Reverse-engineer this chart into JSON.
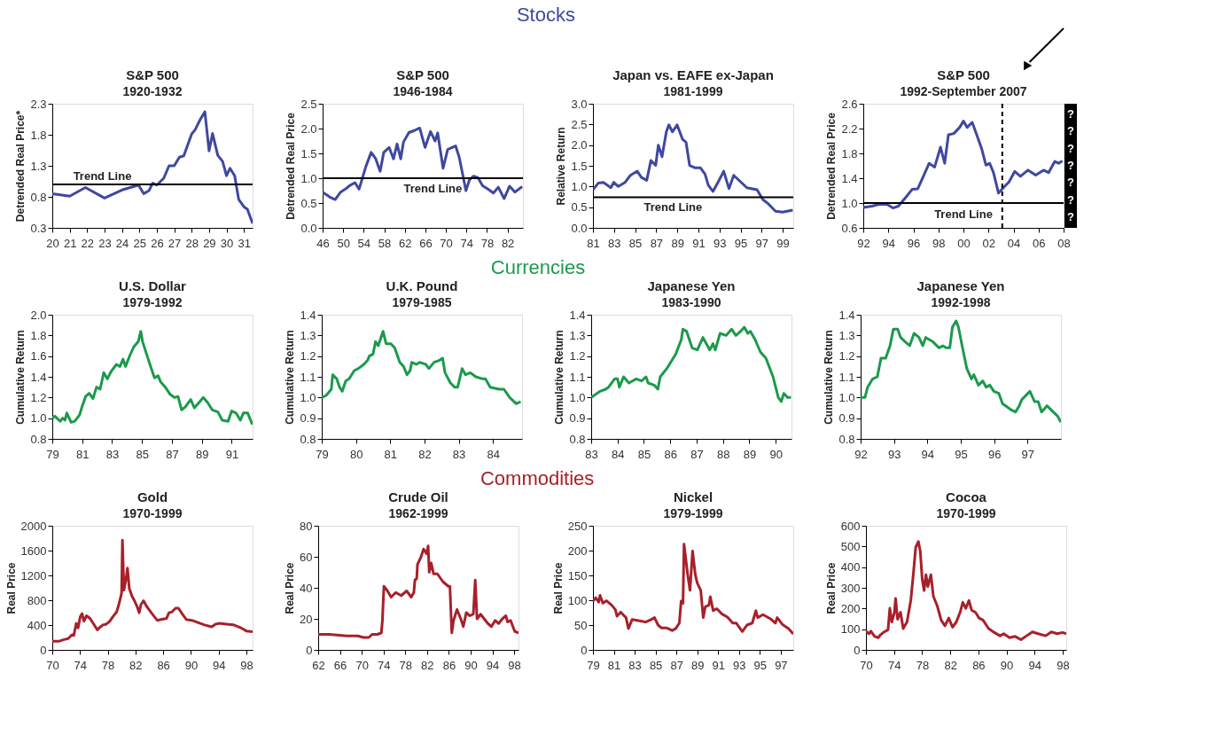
{
  "chart_data": [
    {
      "type": "line",
      "title": "S&P 500",
      "subtitle": "1920-1932",
      "ylabel": "Detrended Real Price*",
      "annotations": [
        "Stocks"
      ],
      "grid": false,
      "x": [
        1920,
        1921,
        1921.9,
        1923.0,
        1924.0,
        1924.95,
        1925.25,
        1925.55,
        1925.76,
        1926.0,
        1926.4,
        1926.7,
        1927.0,
        1927.3,
        1927.55,
        1927.7,
        1928.0,
        1928.2,
        1928.5,
        1928.76,
        1929.0,
        1929.2,
        1929.5,
        1929.78,
        1930.0,
        1930.2,
        1930.47,
        1930.7,
        1931.0,
        1931.2,
        1931.5
      ],
      "series": [
        {
          "color": "#3f48a0",
          "values": [
            0.85,
            0.81,
            0.95,
            0.78,
            0.91,
            0.99,
            0.85,
            0.9,
            1.02,
            0.99,
            1.1,
            1.3,
            1.3,
            1.44,
            1.46,
            1.58,
            1.81,
            1.88,
            2.05,
            2.17,
            1.54,
            1.82,
            1.47,
            1.37,
            1.14,
            1.26,
            1.14,
            0.76,
            0.64,
            0.6,
            0.37
          ]
        }
      ],
      "xlim": [
        1920,
        1931.5
      ],
      "ylim": [
        0.3,
        2.3
      ],
      "yticks": [
        0.3,
        0.8,
        1.3,
        1.8,
        2.3
      ],
      "xticks": [
        {
          "value": 1920,
          "label": "20"
        },
        {
          "value": 1921,
          "label": "21"
        },
        {
          "value": 1922,
          "label": "22"
        },
        {
          "value": 1923,
          "label": "23"
        },
        {
          "value": 1924,
          "label": "24"
        },
        {
          "value": 1925,
          "label": "25"
        },
        {
          "value": 1926,
          "label": "26"
        },
        {
          "value": 1927,
          "label": "27"
        },
        {
          "value": 1928,
          "label": "28"
        },
        {
          "value": 1929,
          "label": "29"
        },
        {
          "value": 1930,
          "label": "30"
        },
        {
          "value": 1931,
          "label": "31"
        }
      ],
      "ref_lines": [
        {
          "axis": "y",
          "value": 1.0,
          "label": "Trend Line",
          "color": "#000000"
        }
      ]
    },
    {
      "type": "line",
      "title": "S&P 500",
      "subtitle": "1946-1984",
      "ylabel": "Detrended Real Price",
      "grid": false,
      "x": [
        1946,
        1947.4,
        1948.45,
        1949.5,
        1950.55,
        1951.25,
        1952.3,
        1953.1,
        1954.4,
        1955.45,
        1956.3,
        1957.2,
        1957.9,
        1958.95,
        1959.8,
        1960.5,
        1961.2,
        1961.75,
        1962.8,
        1963.85,
        1964.9,
        1965.95,
        1967.0,
        1967.9,
        1968.4,
        1969.45,
        1970.35,
        1971.9,
        1972.6,
        1973.9,
        1974.6,
        1975.4,
        1976.25,
        1977.15,
        1978.2,
        1979.25,
        1980.2,
        1981.35,
        1982.4,
        1983.45,
        1984.85
      ],
      "series": [
        {
          "color": "#3f48a0",
          "values": [
            0.72,
            0.62,
            0.57,
            0.72,
            0.79,
            0.85,
            0.91,
            0.78,
            1.23,
            1.52,
            1.4,
            1.14,
            1.52,
            1.62,
            1.39,
            1.69,
            1.39,
            1.73,
            1.92,
            1.96,
            2.01,
            1.62,
            1.94,
            1.75,
            1.91,
            1.2,
            1.58,
            1.65,
            1.42,
            0.75,
            0.97,
            1.04,
            1.01,
            0.85,
            0.78,
            0.7,
            0.82,
            0.59,
            0.84,
            0.72,
            0.83
          ]
        }
      ],
      "xlim": [
        1946,
        1985
      ],
      "ylim": [
        0,
        2.5
      ],
      "yticks": [
        {
          "value": 0,
          "label": "0.0"
        },
        0.5,
        {
          "value": 1,
          "label": "1.0"
        },
        1.5,
        {
          "value": 2,
          "label": "2.0"
        },
        2.5
      ],
      "xticks": [
        {
          "value": 1946,
          "label": "46"
        },
        {
          "value": 1950,
          "label": "50"
        },
        {
          "value": 1954,
          "label": "54"
        },
        {
          "value": 1958,
          "label": "58"
        },
        {
          "value": 1962,
          "label": "62"
        },
        {
          "value": 1966,
          "label": "66"
        },
        {
          "value": 1970,
          "label": "70"
        },
        {
          "value": 1974,
          "label": "74"
        },
        {
          "value": 1978,
          "label": "78"
        },
        {
          "value": 1982,
          "label": "82"
        }
      ],
      "ref_lines": [
        {
          "axis": "y",
          "value": 1.0,
          "label": "Trend Line",
          "color": "#000000"
        }
      ]
    },
    {
      "type": "line",
      "title": "Japan vs. EAFE ex-Japan",
      "subtitle": "1981-1999",
      "ylabel": "Relative Return",
      "grid": false,
      "x": [
        1981,
        1981.5,
        1982,
        1982.7,
        1982.97,
        1983.4,
        1984.05,
        1984.55,
        1985.2,
        1985.6,
        1986.1,
        1986.5,
        1986.95,
        1987.2,
        1987.55,
        1987.96,
        1988.2,
        1988.54,
        1988.98,
        1989.5,
        1989.83,
        1990.17,
        1990.7,
        1991.2,
        1991.63,
        1991.94,
        1992.38,
        1992.82,
        1993.4,
        1993.9,
        1994.35,
        1994.93,
        1995.6,
        1996.56,
        1997.13,
        1997.64,
        1998.32,
        1999.0,
        1999.95
      ],
      "series": [
        {
          "color": "#3f48a0",
          "values": [
            0.92,
            1.08,
            1.1,
            0.97,
            1.1,
            1.0,
            1.1,
            1.27,
            1.37,
            1.22,
            1.15,
            1.63,
            1.51,
            2.0,
            1.72,
            2.32,
            2.49,
            2.32,
            2.49,
            2.14,
            2.07,
            1.51,
            1.45,
            1.45,
            1.3,
            1.03,
            0.88,
            1.08,
            1.37,
            0.95,
            1.27,
            1.13,
            0.97,
            0.92,
            0.68,
            0.58,
            0.4,
            0.38,
            0.43
          ]
        }
      ],
      "xlim": [
        1981,
        2000
      ],
      "ylim": [
        0,
        3.0
      ],
      "yticks": [
        {
          "value": 0,
          "label": "0.0"
        },
        0.5,
        {
          "value": 1,
          "label": "1.0"
        },
        1.5,
        {
          "value": 2,
          "label": "2.0"
        },
        2.5,
        {
          "value": 3,
          "label": "3.0"
        }
      ],
      "xticks": [
        {
          "value": 1981,
          "label": "81"
        },
        {
          "value": 1983,
          "label": "83"
        },
        {
          "value": 1985,
          "label": "85"
        },
        {
          "value": 1987,
          "label": "87"
        },
        {
          "value": 1989,
          "label": "89"
        },
        {
          "value": 1991,
          "label": "91"
        },
        {
          "value": 1993,
          "label": "93"
        },
        {
          "value": 1995,
          "label": "95"
        },
        {
          "value": 1997,
          "label": "97"
        },
        {
          "value": 1999,
          "label": "99"
        }
      ],
      "ref_lines": [
        {
          "axis": "y",
          "value": 0.74,
          "label": "Trend Line",
          "color": "#000000"
        }
      ]
    },
    {
      "type": "line",
      "title": "S&P 500",
      "subtitle": "1992-September 2007",
      "ylabel": "Detrended Real Price",
      "annotations": [
        "?",
        "?",
        "?",
        "?",
        "?",
        "?",
        "?"
      ],
      "grid": false,
      "x": [
        1992,
        1992.7,
        1993.3,
        1993.9,
        1994.37,
        1994.8,
        1995.43,
        1995.9,
        1996.35,
        1996.8,
        1997.26,
        1997.7,
        1998.17,
        1998.5,
        1998.8,
        1999.23,
        1999.7,
        2000.0,
        2000.3,
        2000.7,
        2001.06,
        2001.45,
        2001.8,
        2002.1,
        2002.4,
        2002.8,
        2003.2,
        2003.64,
        2004.1,
        2004.55,
        2005.16,
        2005.77,
        2006.4,
        2006.8,
        2007.3,
        2007.6,
        2007.9
      ],
      "series": [
        {
          "color": "#3f48a0",
          "values": [
            0.93,
            0.95,
            0.98,
            0.98,
            0.92,
            0.95,
            1.1,
            1.22,
            1.23,
            1.43,
            1.64,
            1.58,
            1.9,
            1.64,
            2.1,
            2.12,
            2.22,
            2.32,
            2.22,
            2.3,
            2.1,
            1.88,
            1.61,
            1.64,
            1.49,
            1.16,
            1.25,
            1.34,
            1.51,
            1.43,
            1.53,
            1.45,
            1.53,
            1.49,
            1.67,
            1.64,
            1.68
          ]
        }
      ],
      "xlim": [
        1992,
        2008
      ],
      "ylim": [
        0.6,
        2.6
      ],
      "yticks": [
        0.6,
        {
          "value": 1,
          "label": "1.0"
        },
        1.4,
        1.8,
        2.2,
        2.6
      ],
      "xticks": [
        {
          "value": 1992,
          "label": "92"
        },
        {
          "value": 1994,
          "label": "94"
        },
        {
          "value": 1996,
          "label": "96"
        },
        {
          "value": 1998,
          "label": "98"
        },
        {
          "value": 2000,
          "label": "00"
        },
        {
          "value": 2002,
          "label": "02"
        },
        {
          "value": 2004,
          "label": "04"
        },
        {
          "value": 2006,
          "label": "06"
        },
        {
          "value": 2008,
          "label": "08"
        }
      ],
      "ref_lines": [
        {
          "axis": "y",
          "value": 1.0,
          "label": "Trend Line",
          "color": "#000000"
        },
        {
          "axis": "x",
          "value": 2003.1,
          "color": "#000000",
          "line_style": "dashed"
        }
      ]
    },
    {
      "type": "line",
      "title": "U.S. Dollar",
      "subtitle": "1979-1992",
      "ylabel": "Cumulative Return",
      "annotations": [
        "Currencies"
      ],
      "grid": false,
      "x": [
        1979,
        1979.17,
        1979.53,
        1979.7,
        1979.85,
        1979.97,
        1980.26,
        1980.5,
        1980.82,
        1980.99,
        1981.23,
        1981.47,
        1981.72,
        1981.96,
        1982.2,
        1982.44,
        1982.68,
        1982.93,
        1983.29,
        1983.53,
        1983.73,
        1983.9,
        1984.2,
        1984.45,
        1984.75,
        1984.92,
        1985.04,
        1985.35,
        1985.6,
        1985.84,
        1986.08,
        1986.25,
        1986.56,
        1986.88,
        1987.17,
        1987.41,
        1987.65,
        1987.9,
        1988.26,
        1988.5,
        1988.87,
        1989.1,
        1989.4,
        1989.7,
        1990.08,
        1990.37,
        1990.76,
        1991.0,
        1991.29,
        1991.58,
        1991.78,
        1992.07,
        1992.38
      ],
      "series": [
        {
          "color": "#1b9a4b",
          "values": [
            1.0,
            1.02,
            0.97,
            1.0,
            0.98,
            1.05,
            0.96,
            0.97,
            1.03,
            1.11,
            1.21,
            1.24,
            1.19,
            1.3,
            1.28,
            1.44,
            1.38,
            1.45,
            1.52,
            1.5,
            1.57,
            1.5,
            1.61,
            1.69,
            1.74,
            1.84,
            1.74,
            1.6,
            1.49,
            1.39,
            1.41,
            1.35,
            1.3,
            1.23,
            1.2,
            1.21,
            1.08,
            1.11,
            1.18,
            1.1,
            1.16,
            1.2,
            1.15,
            1.08,
            1.06,
            0.98,
            0.97,
            1.07,
            1.05,
            0.98,
            1.05,
            1.05,
            0.94
          ]
        }
      ],
      "xlim": [
        1979,
        1992.4
      ],
      "ylim": [
        0.8,
        2.0
      ],
      "yticks": [
        0.8,
        {
          "value": 1,
          "label": "1.0"
        },
        1.2,
        1.4,
        1.6,
        1.8,
        {
          "value": 2,
          "label": "2.0"
        }
      ],
      "xticks": [
        {
          "value": 1979,
          "label": "79"
        },
        {
          "value": 1981,
          "label": "81"
        },
        {
          "value": 1983,
          "label": "83"
        },
        {
          "value": 1985,
          "label": "85"
        },
        {
          "value": 1987,
          "label": "87"
        },
        {
          "value": 1989,
          "label": "89"
        },
        {
          "value": 1991,
          "label": "91"
        }
      ]
    },
    {
      "type": "line",
      "title": "U.K. Pound",
      "subtitle": "1979-1985",
      "ylabel": "Cumulative Return",
      "grid": false,
      "x": [
        1979,
        1979.13,
        1979.28,
        1979.32,
        1979.44,
        1979.52,
        1979.6,
        1979.7,
        1979.8,
        1979.95,
        1980.07,
        1980.23,
        1980.34,
        1980.39,
        1980.5,
        1980.57,
        1980.65,
        1980.79,
        1980.88,
        1981.02,
        1981.13,
        1981.28,
        1981.39,
        1981.49,
        1981.58,
        1981.63,
        1981.76,
        1981.86,
        1982.04,
        1982.13,
        1982.28,
        1982.44,
        1982.53,
        1982.6,
        1982.76,
        1982.88,
        1982.97,
        1983.1,
        1983.2,
        1983.34,
        1983.5,
        1983.7,
        1983.78,
        1983.92,
        1984.18,
        1984.32,
        1984.49,
        1984.68,
        1984.81
      ],
      "series": [
        {
          "color": "#1b9a4b",
          "values": [
            1.0,
            1.01,
            1.04,
            1.11,
            1.09,
            1.05,
            1.03,
            1.08,
            1.09,
            1.13,
            1.14,
            1.16,
            1.18,
            1.2,
            1.21,
            1.27,
            1.25,
            1.32,
            1.26,
            1.26,
            1.24,
            1.17,
            1.15,
            1.11,
            1.13,
            1.17,
            1.16,
            1.17,
            1.16,
            1.14,
            1.17,
            1.18,
            1.19,
            1.12,
            1.07,
            1.05,
            1.05,
            1.14,
            1.11,
            1.12,
            1.1,
            1.09,
            1.09,
            1.05,
            1.04,
            1.04,
            1.0,
            0.97,
            0.98
          ]
        }
      ],
      "xlim": [
        1979,
        1984.85
      ],
      "ylim": [
        0.8,
        1.4
      ],
      "yticks": [
        0.8,
        0.9,
        {
          "value": 1,
          "label": "1.0"
        },
        1.1,
        1.2,
        1.3,
        1.4
      ],
      "xticks": [
        {
          "value": 1979,
          "label": "79"
        },
        {
          "value": 1980,
          "label": "80"
        },
        {
          "value": 1981,
          "label": "81"
        },
        {
          "value": 1982,
          "label": "82"
        },
        {
          "value": 1983,
          "label": "83"
        },
        {
          "value": 1984,
          "label": "84"
        }
      ]
    },
    {
      "type": "line",
      "title": "Japanese Yen",
      "subtitle": "1983-1990",
      "ylabel": "Cumulative Return",
      "grid": false,
      "x": [
        1983,
        1983.34,
        1983.55,
        1983.66,
        1983.89,
        1984.0,
        1984.07,
        1984.23,
        1984.43,
        1984.71,
        1984.91,
        1985.08,
        1985.16,
        1985.39,
        1985.53,
        1985.62,
        1985.87,
        1986.21,
        1986.42,
        1986.48,
        1986.62,
        1986.83,
        1987.03,
        1987.24,
        1987.5,
        1987.62,
        1987.71,
        1987.89,
        1988.12,
        1988.33,
        1988.49,
        1988.67,
        1988.81,
        1988.94,
        1989.04,
        1989.22,
        1989.42,
        1989.63,
        1989.9,
        1990.1,
        1990.21,
        1990.31,
        1990.45,
        1990.58
      ],
      "series": [
        {
          "color": "#1b9a4b",
          "values": [
            1.0,
            1.03,
            1.04,
            1.05,
            1.09,
            1.09,
            1.05,
            1.1,
            1.07,
            1.09,
            1.08,
            1.1,
            1.07,
            1.06,
            1.04,
            1.1,
            1.14,
            1.21,
            1.28,
            1.33,
            1.32,
            1.24,
            1.23,
            1.29,
            1.23,
            1.26,
            1.23,
            1.31,
            1.3,
            1.33,
            1.3,
            1.32,
            1.34,
            1.31,
            1.32,
            1.28,
            1.22,
            1.19,
            1.1,
            1.0,
            0.98,
            1.02,
            1.0,
            1.0
          ]
        }
      ],
      "xlim": [
        1983,
        1990.6
      ],
      "ylim": [
        0.8,
        1.4
      ],
      "yticks": [
        0.8,
        0.9,
        {
          "value": 1,
          "label": "1.0"
        },
        1.1,
        1.2,
        1.3,
        1.4
      ],
      "xticks": [
        {
          "value": 1983,
          "label": "83"
        },
        {
          "value": 1984,
          "label": "84"
        },
        {
          "value": 1985,
          "label": "85"
        },
        {
          "value": 1986,
          "label": "86"
        },
        {
          "value": 1987,
          "label": "87"
        },
        {
          "value": 1988,
          "label": "88"
        },
        {
          "value": 1989,
          "label": "89"
        },
        {
          "value": 1990,
          "label": "90"
        }
      ]
    },
    {
      "type": "line",
      "title": "Japanese Yen",
      "subtitle": "1992-1998",
      "ylabel": "Cumulative Return",
      "grid": false,
      "x": [
        1992,
        1992.13,
        1992.21,
        1992.36,
        1992.5,
        1992.61,
        1992.75,
        1992.88,
        1992.98,
        1993.11,
        1993.2,
        1993.33,
        1993.47,
        1993.6,
        1993.75,
        1993.86,
        1993.95,
        1994.16,
        1994.35,
        1994.46,
        1994.57,
        1994.67,
        1994.75,
        1994.86,
        1994.93,
        1995.04,
        1995.18,
        1995.32,
        1995.39,
        1995.53,
        1995.66,
        1995.76,
        1995.87,
        1995.99,
        1996.14,
        1996.25,
        1996.51,
        1996.64,
        1996.75,
        1996.83,
        1997.07,
        1997.21,
        1997.32,
        1997.42,
        1997.58,
        1997.9,
        1998.0
      ],
      "series": [
        {
          "color": "#1b9a4b",
          "values": [
            1.0,
            1.0,
            1.05,
            1.09,
            1.1,
            1.19,
            1.19,
            1.25,
            1.33,
            1.33,
            1.29,
            1.27,
            1.25,
            1.31,
            1.29,
            1.25,
            1.29,
            1.27,
            1.24,
            1.25,
            1.24,
            1.24,
            1.34,
            1.37,
            1.34,
            1.25,
            1.14,
            1.09,
            1.11,
            1.06,
            1.08,
            1.05,
            1.06,
            1.03,
            1.02,
            0.97,
            0.94,
            0.93,
            0.96,
            0.99,
            1.03,
            0.98,
            0.98,
            0.93,
            0.96,
            0.91,
            0.88
          ]
        }
      ],
      "xlim": [
        1992,
        1998
      ],
      "ylim": [
        0.8,
        1.4
      ],
      "yticks": [
        0.8,
        0.9,
        {
          "value": 1,
          "label": "1.0"
        },
        1.1,
        1.2,
        1.3,
        1.4
      ],
      "xticks": [
        {
          "value": 1992,
          "label": "92"
        },
        {
          "value": 1993,
          "label": "93"
        },
        {
          "value": 1994,
          "label": "94"
        },
        {
          "value": 1995,
          "label": "95"
        },
        {
          "value": 1996,
          "label": "96"
        },
        {
          "value": 1997,
          "label": "97"
        }
      ]
    },
    {
      "type": "line",
      "title": "Gold",
      "subtitle": "1970-1999",
      "ylabel": "Real Price",
      "annotations": [
        "Commodities"
      ],
      "grid": false,
      "x": [
        1970,
        1971,
        1971.8,
        1972.3,
        1972.83,
        1973.1,
        1973.46,
        1973.72,
        1974.04,
        1974.3,
        1974.56,
        1974.93,
        1975.45,
        1975.98,
        1976.5,
        1976.76,
        1977.3,
        1977.8,
        1978.3,
        1978.76,
        1979.28,
        1979.65,
        1980.0,
        1980.12,
        1980.33,
        1980.6,
        1980.85,
        1981.1,
        1981.48,
        1981.9,
        1982.27,
        1982.53,
        1982.8,
        1983.16,
        1983.58,
        1984.1,
        1984.63,
        1985.15,
        1985.68,
        1986.47,
        1986.83,
        1987.25,
        1987.78,
        1988.2,
        1988.72,
        1989.35,
        1990.14,
        1990.92,
        1991.97,
        1993.0,
        1993.55,
        1994.07,
        1995.12,
        1996.17,
        1997.22,
        1998.0,
        1998.9
      ],
      "series": [
        {
          "color": "#a8202a",
          "values": [
            140,
            140,
            170,
            183,
            244,
            232,
            427,
            354,
            537,
            585,
            463,
            549,
            506,
            415,
            323,
            354,
            402,
            415,
            463,
            537,
            610,
            750,
            915,
            1768,
            963,
            1116,
            1317,
            994,
            872,
            780,
            689,
            598,
            732,
            793,
            707,
            628,
            549,
            476,
            488,
            506,
            598,
            610,
            671,
            671,
            585,
            488,
            476,
            445,
            402,
            372,
            415,
            427,
            415,
            402,
            354,
            305,
            293
          ]
        }
      ],
      "xlim": [
        1970,
        1998.9
      ],
      "ylim": [
        0,
        2000
      ],
      "yticks": [
        0,
        400,
        800,
        1200,
        1600,
        2000
      ],
      "xticks": [
        {
          "value": 1970,
          "label": "70"
        },
        {
          "value": 1974,
          "label": "74"
        },
        {
          "value": 1978,
          "label": "78"
        },
        {
          "value": 1982,
          "label": "82"
        },
        {
          "value": 1986,
          "label": "86"
        },
        {
          "value": 1990,
          "label": "90"
        },
        {
          "value": 1994,
          "label": "94"
        },
        {
          "value": 1998,
          "label": "98"
        }
      ]
    },
    {
      "type": "line",
      "title": "Crude Oil",
      "subtitle": "1962-1999",
      "ylabel": "Real Price",
      "grid": false,
      "x": [
        1962,
        1964,
        1967.3,
        1969.3,
        1970.3,
        1971.3,
        1971.9,
        1972.9,
        1973.6,
        1973.8,
        1974.07,
        1974.73,
        1975.4,
        1976.26,
        1977.25,
        1978.25,
        1979.1,
        1979.57,
        1979.77,
        1980.1,
        1980.24,
        1980.9,
        1981.36,
        1981.9,
        1982.2,
        1982.4,
        1982.76,
        1983.2,
        1983.9,
        1984.9,
        1985.9,
        1986.2,
        1986.54,
        1986.87,
        1987.5,
        1988.2,
        1988.66,
        1989.2,
        1989.85,
        1990.5,
        1990.85,
        1991.18,
        1991.84,
        1992.5,
        1993.17,
        1993.83,
        1994.5,
        1995.16,
        1995.82,
        1996.48,
        1996.8,
        1997.34,
        1998.1,
        1998.8
      ],
      "series": [
        {
          "color": "#a8202a",
          "values": [
            10,
            10,
            9,
            9,
            8,
            8,
            10,
            10,
            11,
            19,
            41,
            38,
            34,
            37,
            35,
            38,
            34,
            37,
            45,
            46,
            55,
            60,
            65,
            62,
            67,
            50,
            56,
            49,
            49,
            44,
            41,
            41,
            11,
            19,
            26,
            20,
            15,
            24,
            22,
            23,
            45,
            20,
            23,
            20,
            17,
            15,
            19,
            17,
            20,
            22,
            18,
            19,
            12,
            11
          ]
        }
      ],
      "xlim": [
        1962,
        1998.8
      ],
      "ylim": [
        0,
        80
      ],
      "yticks": [
        0,
        20,
        40,
        60,
        80
      ],
      "xticks": [
        {
          "value": 1962,
          "label": "62"
        },
        {
          "value": 1966,
          "label": "66"
        },
        {
          "value": 1970,
          "label": "70"
        },
        {
          "value": 1974,
          "label": "74"
        },
        {
          "value": 1978,
          "label": "78"
        },
        {
          "value": 1982,
          "label": "82"
        },
        {
          "value": 1986,
          "label": "86"
        },
        {
          "value": 1990,
          "label": "90"
        },
        {
          "value": 1994,
          "label": "94"
        },
        {
          "value": 1998,
          "label": "98"
        }
      ]
    },
    {
      "type": "line",
      "title": "Nickel",
      "subtitle": "1979-1999",
      "ylabel": "Real Price",
      "grid": false,
      "x": [
        1979,
        1979.27,
        1979.55,
        1979.68,
        1979.95,
        1980.3,
        1980.8,
        1981.15,
        1981.3,
        1981.66,
        1982.17,
        1982.4,
        1982.75,
        1983.36,
        1984.05,
        1984.56,
        1984.9,
        1985.24,
        1985.58,
        1986.09,
        1986.6,
        1986.94,
        1987.28,
        1987.45,
        1987.63,
        1987.73,
        1988.07,
        1988.3,
        1988.55,
        1988.8,
        1988.99,
        1989.33,
        1989.57,
        1989.77,
        1990.11,
        1990.25,
        1990.52,
        1990.86,
        1991.38,
        1991.89,
        1992.4,
        1992.74,
        1993.32,
        1993.76,
        1994.27,
        1994.62,
        1994.79,
        1995.3,
        1995.98,
        1996.49,
        1996.66,
        1997.17,
        1997.75,
        1998.2
      ],
      "series": [
        {
          "color": "#a8202a",
          "values": [
            98,
            105,
            96,
            110,
            94,
            99,
            90,
            81,
            68,
            76,
            65,
            43,
            61,
            59,
            56,
            61,
            65,
            50,
            44,
            44,
            39,
            43,
            54,
            98,
            94,
            213,
            153,
            120,
            199,
            153,
            135,
            120,
            65,
            87,
            90,
            107,
            79,
            83,
            72,
            66,
            54,
            54,
            37,
            50,
            54,
            79,
            65,
            71,
            63,
            54,
            65,
            51,
            43,
            32
          ]
        }
      ],
      "xlim": [
        1979,
        1998.2
      ],
      "ylim": [
        0,
        250
      ],
      "yticks": [
        0,
        50,
        100,
        150,
        200,
        250
      ],
      "xticks": [
        {
          "value": 1979,
          "label": "79"
        },
        {
          "value": 1981,
          "label": "81"
        },
        {
          "value": 1983,
          "label": "83"
        },
        {
          "value": 1985,
          "label": "85"
        },
        {
          "value": 1987,
          "label": "87"
        },
        {
          "value": 1989,
          "label": "89"
        },
        {
          "value": 1991,
          "label": "91"
        },
        {
          "value": 1993,
          "label": "93"
        },
        {
          "value": 1995,
          "label": "95"
        },
        {
          "value": 1997,
          "label": "97"
        }
      ]
    },
    {
      "type": "line",
      "title": "Cocoa",
      "subtitle": "1970-1999",
      "ylabel": "Real Price",
      "grid": false,
      "x": [
        1970,
        1970.43,
        1970.7,
        1971.24,
        1971.78,
        1972.05,
        1972.6,
        1973.14,
        1973.4,
        1973.68,
        1974.05,
        1974.22,
        1974.5,
        1974.92,
        1975.3,
        1975.84,
        1976.38,
        1976.76,
        1977.08,
        1977.46,
        1977.73,
        1978.0,
        1978.27,
        1978.54,
        1978.8,
        1979.24,
        1979.6,
        1980.16,
        1980.7,
        1981.24,
        1981.78,
        1982.32,
        1982.86,
        1983.4,
        1983.78,
        1984.2,
        1984.65,
        1985.03,
        1985.57,
        1986.1,
        1986.65,
        1987.46,
        1988.27,
        1989.08,
        1989.6,
        1990.43,
        1991.24,
        1992.05,
        1992.86,
        1993.68,
        1994.5,
        1995.57,
        1996.38,
        1997.2,
        1998.0,
        1998.5
      ],
      "series": [
        {
          "color": "#a8202a",
          "values": [
            91,
            78,
            91,
            65,
            59,
            72,
            87,
            97,
            201,
            135,
            182,
            249,
            148,
            182,
            103,
            135,
            239,
            372,
            496,
            524,
            477,
            344,
            287,
            363,
            306,
            363,
            258,
            211,
            144,
            116,
            154,
            110,
            135,
            182,
            230,
            201,
            239,
            192,
            182,
            154,
            144,
            103,
            84,
            68,
            78,
            59,
            65,
            49,
            68,
            87,
            78,
            68,
            87,
            78,
            84,
            78
          ]
        }
      ],
      "xlim": [
        1970,
        1998.5
      ],
      "ylim": [
        0,
        600
      ],
      "yticks": [
        0,
        100,
        200,
        300,
        400,
        500,
        600
      ],
      "xticks": [
        {
          "value": 1970,
          "label": "70"
        },
        {
          "value": 1974,
          "label": "74"
        },
        {
          "value": 1978,
          "label": "78"
        },
        {
          "value": 1982,
          "label": "82"
        },
        {
          "value": 1986,
          "label": "86"
        },
        {
          "value": 1990,
          "label": "90"
        },
        {
          "value": 1994,
          "label": "94"
        },
        {
          "value": 1998,
          "label": "98"
        }
      ]
    }
  ]
}
